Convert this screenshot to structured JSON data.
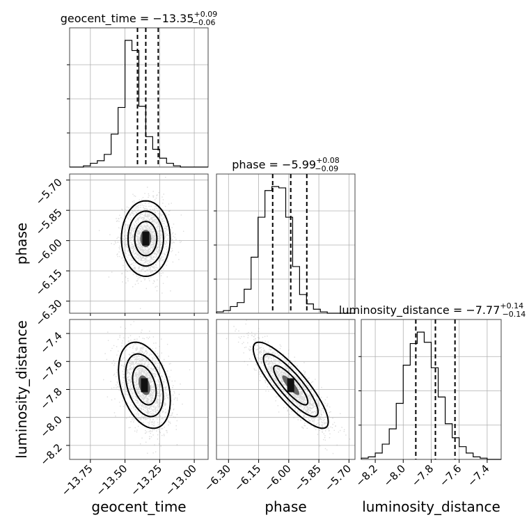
{
  "chart_data": {
    "type": "corner",
    "parameters": [
      "geocent_time",
      "phase",
      "luminosity_distance"
    ],
    "titles": [
      {
        "param": "geocent_time",
        "text": "geocent_time = −13.35",
        "plus": "+0.09",
        "minus": "−0.06"
      },
      {
        "param": "phase",
        "text": "phase = −5.99",
        "plus": "+0.08",
        "minus": "−0.09"
      },
      {
        "param": "luminosity_distance",
        "text": "luminosity_distance = −7.77",
        "plus": "+0.14",
        "minus": "−0.14"
      }
    ],
    "axis_labels": [
      "geocent_time",
      "phase",
      "luminosity_distance"
    ],
    "ranges": {
      "geocent_time": [
        -13.9,
        -12.9
      ],
      "phase": [
        -6.36,
        -5.67
      ],
      "luminosity_distance": [
        -8.3,
        -7.3
      ]
    },
    "ticks": {
      "geocent_time": {
        "values": [
          -13.75,
          -13.5,
          -13.25,
          -13.0
        ],
        "labels": [
          "−13.75",
          "−13.50",
          "−13.25",
          "−13.00"
        ]
      },
      "phase": {
        "values": [
          -6.3,
          -6.15,
          -6.0,
          -5.85,
          -5.7
        ],
        "labels": [
          "−6.30",
          "−6.15",
          "−6.00",
          "−5.85",
          "−5.70"
        ]
      },
      "luminosity_distance": {
        "values": [
          -8.2,
          -8.0,
          -7.8,
          -7.6,
          -7.4
        ],
        "labels": [
          "−8.2",
          "−8.0",
          "−7.8",
          "−7.6",
          "−7.4"
        ]
      }
    },
    "quantiles": {
      "geocent_time": [
        -13.41,
        -13.35,
        -13.26
      ],
      "phase": [
        -6.08,
        -5.99,
        -5.91
      ],
      "luminosity_distance": [
        -7.91,
        -7.77,
        -7.63
      ]
    },
    "histograms": {
      "geocent_time": [
        0,
        0,
        1,
        3,
        5,
        10,
        26,
        47,
        100,
        92,
        48,
        24,
        14,
        7,
        3,
        1,
        0,
        0,
        0,
        0
      ],
      "phase": [
        1,
        2,
        5,
        8,
        18,
        42,
        72,
        92,
        95,
        94,
        72,
        35,
        14,
        7,
        3,
        1,
        0,
        0,
        0,
        0
      ],
      "luminosity_distance": [
        1,
        2,
        5,
        12,
        24,
        44,
        74,
        91,
        100,
        92,
        72,
        49,
        28,
        17,
        10,
        5,
        2,
        1,
        0,
        0
      ]
    },
    "grid": true
  }
}
